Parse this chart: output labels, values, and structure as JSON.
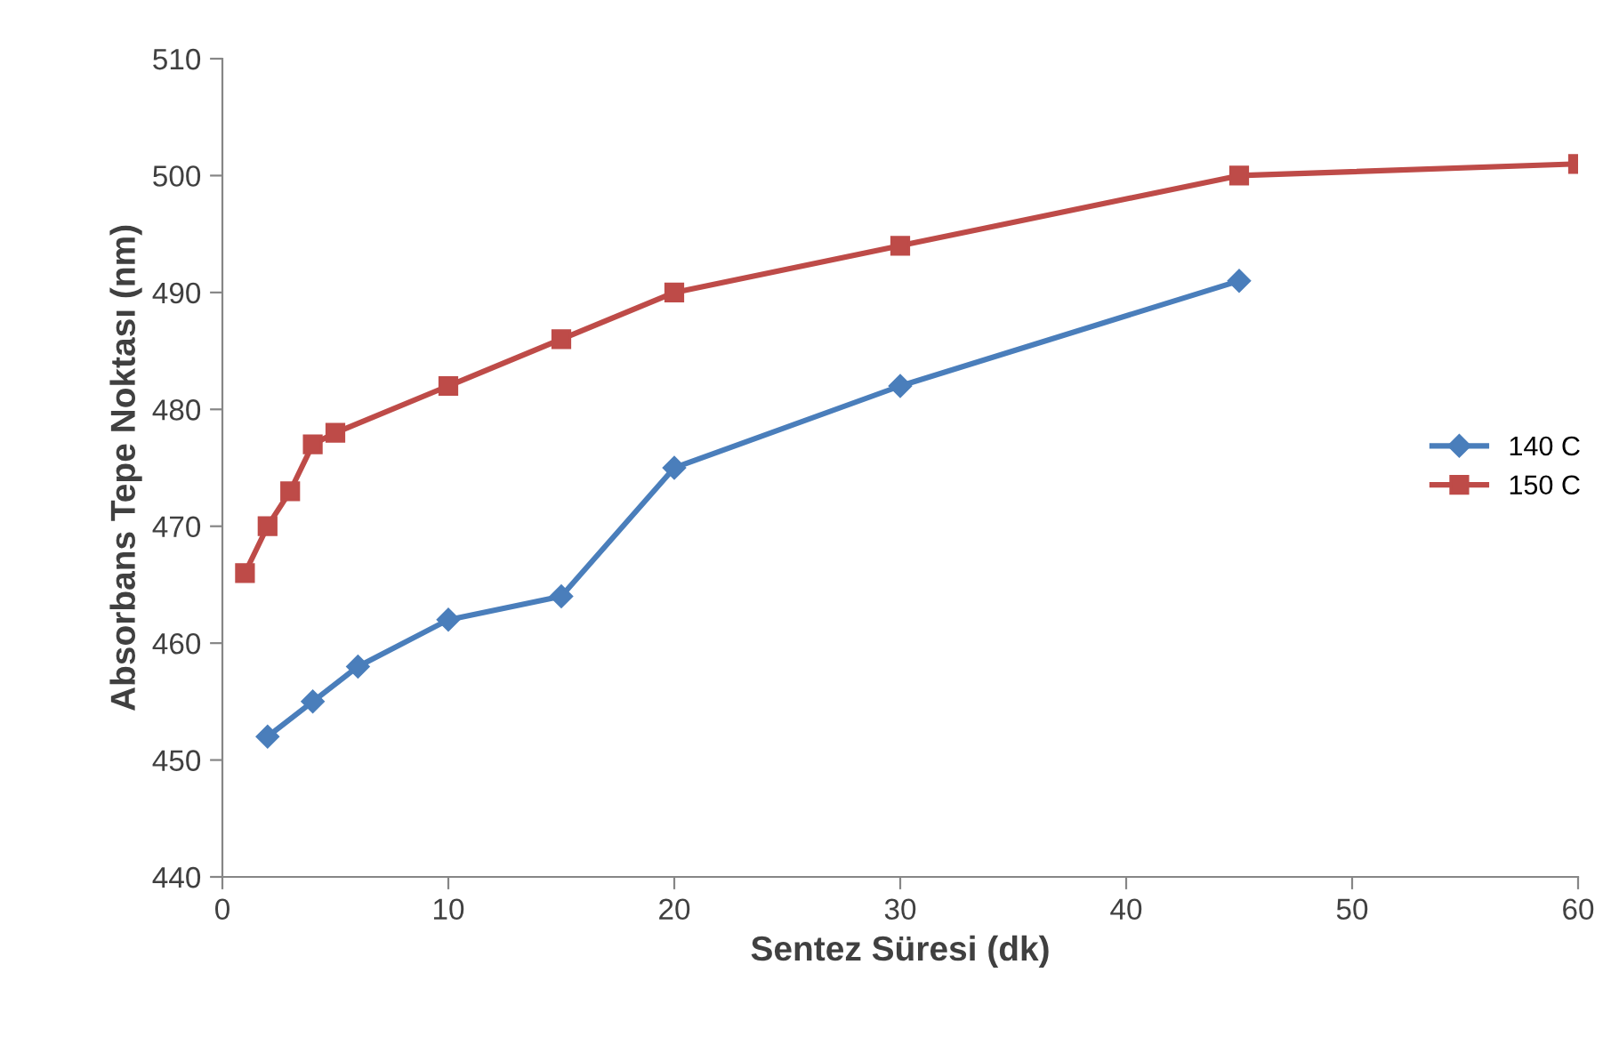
{
  "chart_data": {
    "type": "line",
    "xlabel": "Sentez Süresi (dk)",
    "ylabel": "Absorbans Tepe Noktası (nm)",
    "xlim": [
      0,
      60
    ],
    "xticks": [
      0,
      10,
      20,
      30,
      40,
      50,
      60
    ],
    "ylim": [
      440,
      510
    ],
    "yticks": [
      440,
      450,
      460,
      470,
      480,
      490,
      500,
      510
    ],
    "grid": false,
    "legend": "right",
    "series": [
      {
        "name": "140 C",
        "color": "#4a7ebb",
        "marker": "diamond",
        "x": [
          2,
          4,
          6,
          10,
          15,
          20,
          30,
          45
        ],
        "values": [
          452,
          455,
          458,
          462,
          464,
          475,
          482,
          491
        ]
      },
      {
        "name": "150 C",
        "color": "#be4b48",
        "marker": "square",
        "x": [
          1,
          2,
          3,
          4,
          5,
          10,
          15,
          20,
          30,
          45,
          60
        ],
        "values": [
          466,
          470,
          473,
          477,
          478,
          482,
          486,
          490,
          494,
          500,
          501
        ]
      }
    ]
  }
}
